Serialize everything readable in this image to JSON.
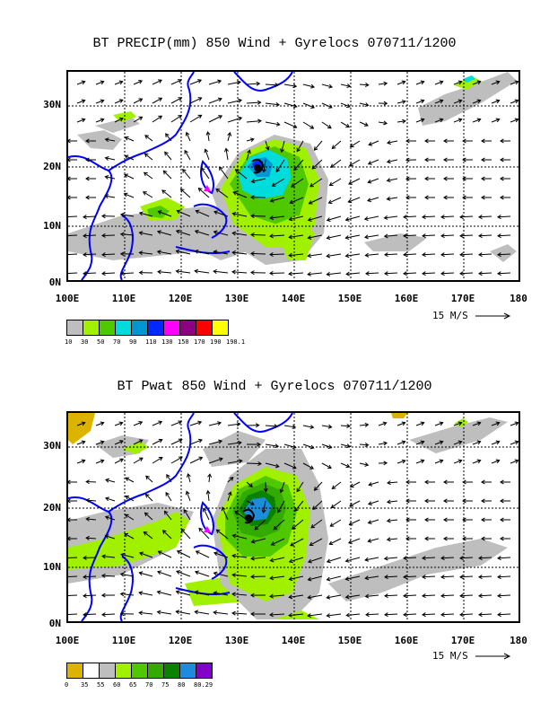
{
  "panel1": {
    "title": "BT PRECIP(mm) 850 Wind + Gyrelocs 070711/1200",
    "y_labels": [
      "30N",
      "20N",
      "10N",
      "0N"
    ],
    "x_labels": [
      "100E",
      "110E",
      "120E",
      "130E",
      "140E",
      "150E",
      "160E",
      "170E",
      "180"
    ],
    "ref_vector": "15 M/S",
    "colorbar_colors": [
      "#bebebe",
      "#a0f000",
      "#50c800",
      "#00dcdc",
      "#0096d2",
      "#0028ff",
      "#ff00ff",
      "#8c0082",
      "#ff0000",
      "#ffff00"
    ],
    "colorbar_labels": [
      "10",
      "30",
      "50",
      "70",
      "90",
      "110",
      "130",
      "150",
      "170",
      "190",
      "198.1"
    ]
  },
  "panel2": {
    "title": "BT Pwat 850 Wind + Gyrelocs 070711/1200",
    "y_labels": [
      "30N",
      "20N",
      "10N",
      "0N"
    ],
    "x_labels": [
      "100E",
      "110E",
      "120E",
      "130E",
      "140E",
      "150E",
      "160E",
      "170E",
      "180"
    ],
    "ref_vector": "15 M/S",
    "colorbar_colors": [
      "#dcb400",
      "#ffffff",
      "#bebebe",
      "#a0f000",
      "#50c800",
      "#32aa00",
      "#0a8200",
      "#1e8cdc",
      "#8200c8"
    ],
    "colorbar_labels": [
      "0",
      "35",
      "55",
      "60",
      "65",
      "70",
      "75",
      "80",
      "80.29"
    ]
  },
  "chart_data": [
    {
      "type": "map",
      "title": "BT PRECIP(mm) 850 Wind + Gyrelocs 070711/1200",
      "xlim": [
        100,
        180
      ],
      "ylim": [
        0,
        35
      ],
      "grid": true,
      "storm_center": {
        "lon": 129,
        "lat": 19
      },
      "gyre_marker": {
        "lon": 124.5,
        "lat": 15.5
      }
    },
    {
      "type": "map",
      "title": "BT Pwat 850 Wind + Gyrelocs 070711/1200",
      "xlim": [
        100,
        180
      ],
      "ylim": [
        0,
        35
      ],
      "grid": true,
      "storm_center": {
        "lon": 129,
        "lat": 19
      },
      "gyre_marker": {
        "lon": 124.5,
        "lat": 15.5
      }
    }
  ]
}
